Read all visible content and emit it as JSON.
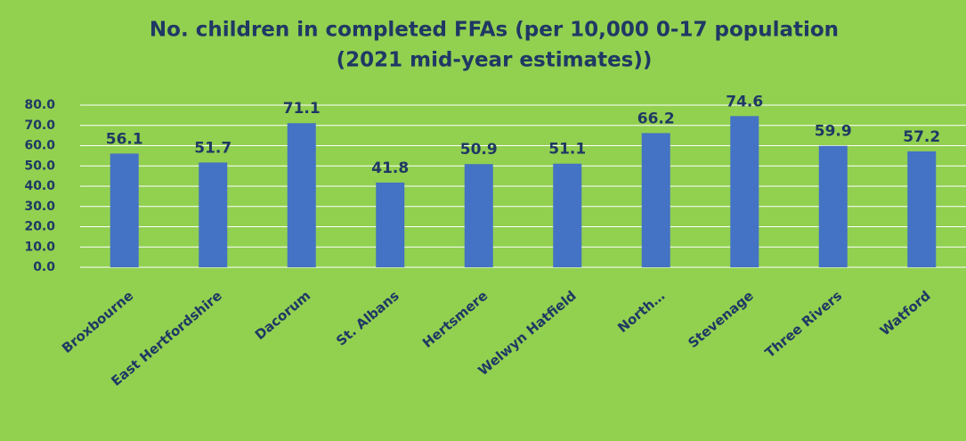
{
  "chart_data": {
    "type": "bar",
    "title": [
      "No. children in completed FFAs (per 10,000 0-17 population",
      "(2021 mid-year estimates))"
    ],
    "categories": [
      "Broxbourne",
      "East Hertfordshire",
      "Dacorum",
      "St. Albans",
      "Hertsmere",
      "Welwyn Hatfield",
      "North…",
      "Stevenage",
      "Three Rivers",
      "Watford"
    ],
    "values": [
      56.1,
      51.7,
      71.1,
      41.8,
      50.9,
      51.1,
      66.2,
      74.6,
      59.9,
      57.2
    ],
    "color": "#4472c4",
    "ylim": [
      0,
      80
    ],
    "yticks": [
      {
        "value": 0,
        "label": "0.0"
      },
      {
        "value": 10,
        "label": "10.0"
      },
      {
        "value": 20,
        "label": "20.0"
      },
      {
        "value": 30,
        "label": "30.0"
      },
      {
        "value": 40,
        "label": "40.0"
      },
      {
        "value": 50,
        "label": "50.0"
      },
      {
        "value": 60,
        "label": "60.0"
      },
      {
        "value": 70,
        "label": "70.0"
      },
      {
        "value": 80,
        "label": "80.0"
      }
    ],
    "grid": true
  }
}
